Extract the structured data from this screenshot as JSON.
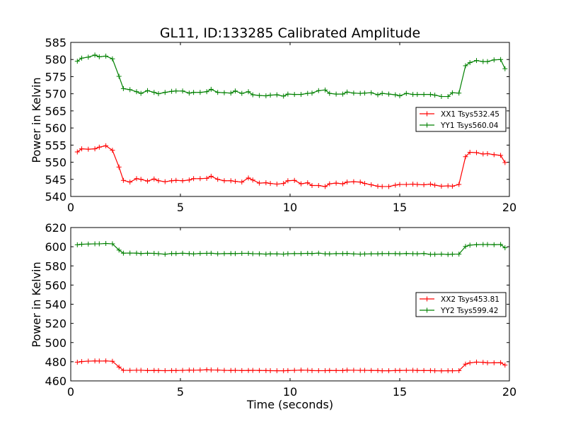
{
  "chart_data": [
    {
      "type": "line",
      "title": "GL11, ID:133285 Calibrated Amplitude",
      "xlabel": "",
      "ylabel": "Power in Kelvin",
      "xlim": [
        0,
        20
      ],
      "ylim": [
        540,
        585
      ],
      "xticks": [
        "0",
        "5",
        "10",
        "15",
        "20"
      ],
      "yticks": [
        "540",
        "545",
        "550",
        "555",
        "560",
        "565",
        "570",
        "575",
        "580",
        "585"
      ],
      "grid": false,
      "legend_position": "center-right",
      "x": [
        0.3,
        0.5,
        0.8,
        1.1,
        1.3,
        1.6,
        1.9,
        2.2,
        2.4,
        2.7,
        3.0,
        3.2,
        3.5,
        3.8,
        4.0,
        4.3,
        4.6,
        4.8,
        5.1,
        5.4,
        5.6,
        5.9,
        6.2,
        6.4,
        6.7,
        7.0,
        7.3,
        7.5,
        7.8,
        8.1,
        8.3,
        8.6,
        8.9,
        9.1,
        9.4,
        9.7,
        9.9,
        10.2,
        10.5,
        10.8,
        11.0,
        11.3,
        11.6,
        11.8,
        12.1,
        12.4,
        12.6,
        12.9,
        13.2,
        13.4,
        13.7,
        14.0,
        14.2,
        14.5,
        14.8,
        15.0,
        15.3,
        15.6,
        15.8,
        16.1,
        16.4,
        16.6,
        16.9,
        17.2,
        17.4,
        17.7,
        18.0,
        18.2,
        18.5,
        18.8,
        19.0,
        19.3,
        19.6,
        19.8
      ],
      "series": [
        {
          "name": "XX1 Tsys532.45",
          "color": "#ff0000",
          "values": [
            553.0,
            553.9,
            553.8,
            553.9,
            554.4,
            554.8,
            553.5,
            548.6,
            544.7,
            544.2,
            545.2,
            545.0,
            544.5,
            545.1,
            544.6,
            544.3,
            544.6,
            544.7,
            544.6,
            544.8,
            545.2,
            545.2,
            545.3,
            545.9,
            545.0,
            544.6,
            544.6,
            544.4,
            544.2,
            545.4,
            544.8,
            543.9,
            544.0,
            543.8,
            543.6,
            543.8,
            544.6,
            544.7,
            543.7,
            544.0,
            543.2,
            543.2,
            542.9,
            543.7,
            543.9,
            543.7,
            544.2,
            544.3,
            544.2,
            543.8,
            543.4,
            543.0,
            542.9,
            542.9,
            543.3,
            543.5,
            543.5,
            543.6,
            543.5,
            543.4,
            543.6,
            543.3,
            543.0,
            543.1,
            543.0,
            543.5,
            551.6,
            552.9,
            552.8,
            552.4,
            552.5,
            552.2,
            552.0,
            549.9
          ]
        },
        {
          "name": "YY1 Tsys560.04",
          "color": "#008000",
          "values": [
            579.5,
            580.4,
            580.7,
            581.3,
            580.8,
            581.0,
            580.2,
            575.1,
            571.5,
            571.2,
            570.6,
            570.1,
            570.9,
            570.4,
            570.0,
            570.4,
            570.7,
            570.8,
            570.8,
            570.2,
            570.4,
            570.4,
            570.6,
            571.3,
            570.4,
            570.3,
            570.2,
            570.8,
            570.1,
            570.6,
            569.7,
            569.5,
            569.4,
            569.6,
            569.7,
            569.3,
            569.9,
            569.8,
            569.8,
            570.1,
            570.2,
            570.9,
            571.1,
            570.1,
            569.9,
            569.9,
            570.5,
            570.2,
            570.1,
            570.2,
            570.3,
            569.7,
            570.1,
            569.9,
            569.7,
            569.4,
            570.1,
            569.8,
            569.8,
            569.8,
            569.8,
            569.6,
            569.2,
            569.2,
            570.3,
            570.2,
            578.2,
            579.1,
            579.7,
            579.4,
            579.4,
            579.9,
            580.0,
            577.3
          ]
        }
      ]
    },
    {
      "type": "line",
      "title": "",
      "xlabel": "Time (seconds)",
      "ylabel": "Power in Kelvin",
      "xlim": [
        0,
        20
      ],
      "ylim": [
        460,
        620
      ],
      "xticks": [
        "0",
        "5",
        "10",
        "15",
        "20"
      ],
      "yticks": [
        "460",
        "480",
        "500",
        "520",
        "540",
        "560",
        "580",
        "600",
        "620"
      ],
      "grid": false,
      "legend_position": "center-right",
      "x": [
        0.3,
        0.5,
        0.8,
        1.1,
        1.3,
        1.6,
        1.9,
        2.2,
        2.4,
        2.7,
        3.0,
        3.2,
        3.5,
        3.8,
        4.0,
        4.3,
        4.6,
        4.8,
        5.1,
        5.4,
        5.6,
        5.9,
        6.2,
        6.4,
        6.7,
        7.0,
        7.3,
        7.5,
        7.8,
        8.1,
        8.3,
        8.6,
        8.9,
        9.1,
        9.4,
        9.7,
        9.9,
        10.2,
        10.5,
        10.8,
        11.0,
        11.3,
        11.6,
        11.8,
        12.1,
        12.4,
        12.6,
        12.9,
        13.2,
        13.4,
        13.7,
        14.0,
        14.2,
        14.5,
        14.8,
        15.0,
        15.3,
        15.6,
        15.8,
        16.1,
        16.4,
        16.6,
        16.9,
        17.2,
        17.4,
        17.7,
        18.0,
        18.2,
        18.5,
        18.8,
        19.0,
        19.3,
        19.6,
        19.8
      ],
      "series": [
        {
          "name": "XX2 Tsys453.81",
          "color": "#ff0000",
          "values": [
            479.5,
            480.2,
            480.6,
            480.8,
            480.7,
            480.8,
            480.5,
            474.5,
            471.0,
            471.0,
            471.1,
            471.1,
            470.8,
            470.9,
            470.8,
            470.7,
            470.8,
            470.8,
            471.0,
            471.2,
            471.1,
            471.3,
            471.6,
            471.4,
            471.3,
            471.0,
            470.9,
            471.0,
            470.8,
            470.9,
            471.0,
            470.9,
            470.8,
            470.7,
            470.6,
            470.6,
            470.8,
            471.0,
            471.2,
            471.1,
            470.8,
            470.7,
            470.7,
            470.9,
            470.8,
            470.8,
            471.2,
            471.1,
            471.0,
            471.0,
            470.9,
            470.8,
            470.6,
            470.6,
            470.8,
            470.9,
            471.0,
            471.1,
            470.9,
            470.8,
            470.8,
            470.6,
            470.5,
            470.6,
            470.6,
            470.7,
            477.5,
            478.8,
            479.6,
            479.4,
            478.8,
            478.9,
            479.0,
            476.5
          ]
        },
        {
          "name": "YY2 Tsys599.42",
          "color": "#008000",
          "values": [
            602.0,
            602.6,
            602.8,
            603.0,
            603.0,
            603.4,
            603.0,
            596.5,
            593.3,
            593.4,
            593.3,
            592.9,
            593.2,
            593.1,
            592.7,
            592.2,
            592.9,
            592.9,
            593.2,
            592.8,
            592.5,
            593.0,
            593.1,
            593.2,
            592.6,
            592.8,
            592.9,
            592.8,
            593.1,
            593.1,
            592.7,
            592.6,
            592.3,
            592.6,
            592.5,
            592.3,
            592.7,
            592.8,
            592.8,
            593.1,
            592.9,
            593.3,
            592.6,
            592.5,
            592.8,
            592.8,
            593.0,
            592.5,
            592.3,
            592.4,
            592.6,
            592.6,
            592.8,
            592.8,
            592.8,
            592.6,
            592.9,
            592.7,
            592.6,
            592.9,
            592.0,
            592.1,
            592.3,
            591.9,
            592.2,
            592.3,
            600.3,
            601.7,
            602.1,
            602.3,
            602.3,
            602.1,
            602.3,
            598.9
          ]
        }
      ]
    }
  ]
}
